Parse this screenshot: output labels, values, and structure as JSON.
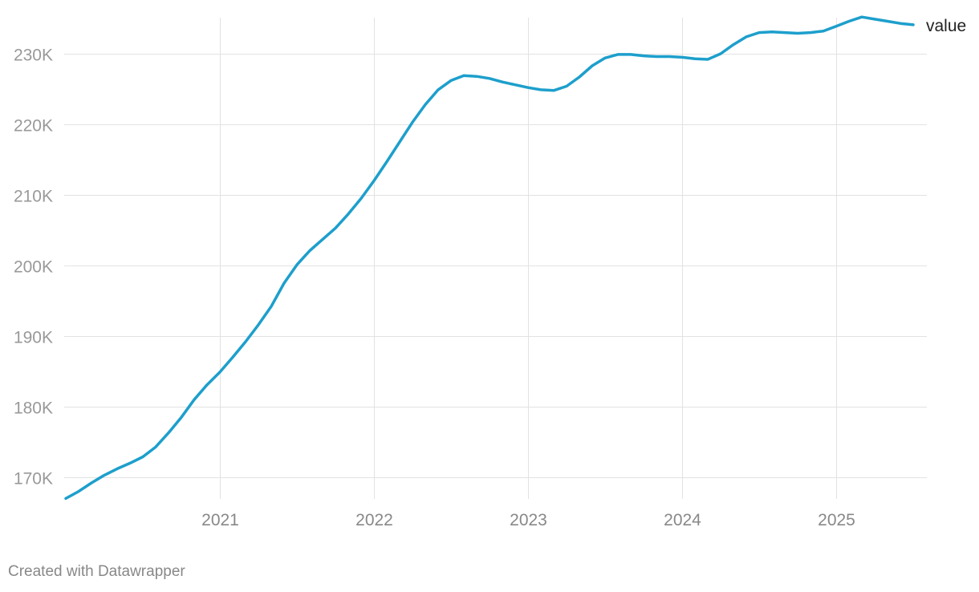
{
  "chart_data": {
    "type": "line",
    "title": "",
    "xlabel": "",
    "ylabel": "",
    "xlim": [
      "2020-01",
      "2025-07"
    ],
    "ylim": [
      167000,
      235000
    ],
    "grid": true,
    "x_ticks": [
      "2021",
      "2022",
      "2023",
      "2024",
      "2025"
    ],
    "y_ticks": [
      {
        "value": 170000,
        "label": "170K"
      },
      {
        "value": 180000,
        "label": "180K"
      },
      {
        "value": 190000,
        "label": "190K"
      },
      {
        "value": 200000,
        "label": "200K"
      },
      {
        "value": 210000,
        "label": "210K"
      },
      {
        "value": 220000,
        "label": "220K"
      },
      {
        "value": 230000,
        "label": "230K"
      }
    ],
    "x": [
      "2020-01",
      "2020-02",
      "2020-03",
      "2020-04",
      "2020-05",
      "2020-06",
      "2020-07",
      "2020-08",
      "2020-09",
      "2020-10",
      "2020-11",
      "2020-12",
      "2021-01",
      "2021-02",
      "2021-03",
      "2021-04",
      "2021-05",
      "2021-06",
      "2021-07",
      "2021-08",
      "2021-09",
      "2021-10",
      "2021-11",
      "2021-12",
      "2022-01",
      "2022-02",
      "2022-03",
      "2022-04",
      "2022-05",
      "2022-06",
      "2022-07",
      "2022-08",
      "2022-09",
      "2022-10",
      "2022-11",
      "2022-12",
      "2023-01",
      "2023-02",
      "2023-03",
      "2023-04",
      "2023-05",
      "2023-06",
      "2023-07",
      "2023-08",
      "2023-09",
      "2023-10",
      "2023-11",
      "2023-12",
      "2024-01",
      "2024-02",
      "2024-03",
      "2024-04",
      "2024-05",
      "2024-06",
      "2024-07",
      "2024-08",
      "2024-09",
      "2024-10",
      "2024-11",
      "2024-12",
      "2025-01",
      "2025-02",
      "2025-03",
      "2025-04",
      "2025-05",
      "2025-06",
      "2025-07"
    ],
    "series": [
      {
        "name": "value",
        "color": "#1d9fcc",
        "values": [
          167000,
          168000,
          169200,
          170300,
          171200,
          172000,
          172900,
          174300,
          176300,
          178500,
          181000,
          183100,
          184900,
          187000,
          189200,
          191600,
          194200,
          197500,
          200100,
          202100,
          203700,
          205300,
          207300,
          209500,
          212000,
          214700,
          217500,
          220300,
          222800,
          224900,
          226200,
          226900,
          226800,
          226500,
          226000,
          225600,
          225200,
          224900,
          224800,
          225400,
          226700,
          228300,
          229400,
          229900,
          229900,
          229700,
          229600,
          229600,
          229500,
          229300,
          229200,
          230000,
          231300,
          232400,
          233000,
          233100,
          233000,
          232900,
          233000,
          233200,
          233900,
          234600,
          235200,
          234900,
          234600,
          234300,
          234100
        ]
      }
    ]
  },
  "footer": {
    "credit": "Created with Datawrapper"
  }
}
